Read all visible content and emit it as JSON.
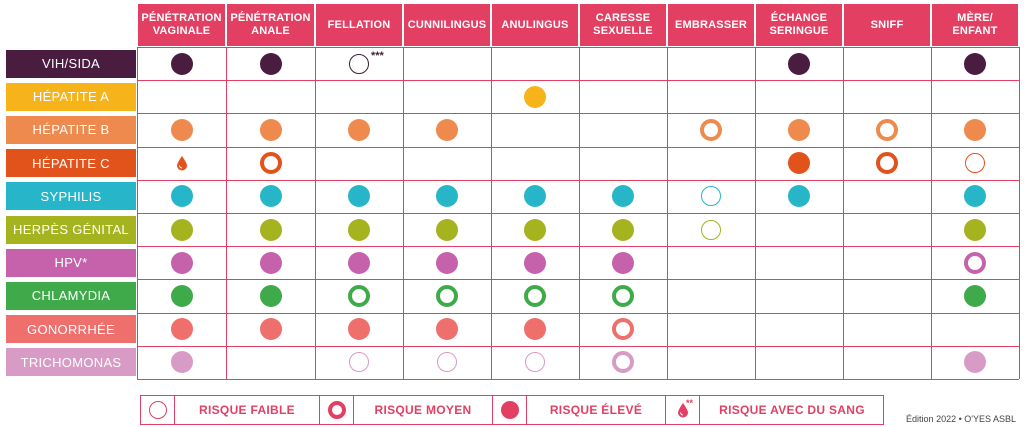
{
  "columns": [
    "PÉNÉTRATION VAGINALE",
    "PÉNÉTRATION ANALE",
    "FELLATION",
    "CUNNILINGUS",
    "ANULINGUS",
    "CARESSE SEXUELLE",
    "EMBRASSER",
    "ÉCHANGE SERINGUE",
    "SNIFF",
    "MÈRE/ ENFANT"
  ],
  "rows": [
    {
      "label": "VIH/SIDA",
      "color": "#4a1c40",
      "cells": [
        "eleve",
        "eleve",
        "faible",
        "",
        "",
        "",
        "",
        "eleve",
        "",
        "eleve"
      ]
    },
    {
      "label": "HÉPATITE A",
      "color": "#f7b41a",
      "cells": [
        "",
        "",
        "",
        "",
        "eleve",
        "",
        "",
        "",
        "",
        ""
      ]
    },
    {
      "label": "HÉPATITE B",
      "color": "#ef8a4e",
      "cells": [
        "eleve",
        "eleve",
        "eleve",
        "eleve",
        "",
        "",
        "moyen",
        "eleve",
        "moyen",
        "eleve"
      ]
    },
    {
      "label": "HÉPATITE C",
      "color": "#e2531c",
      "cells": [
        "sang",
        "moyen",
        "",
        "",
        "",
        "",
        "",
        "eleve",
        "moyen",
        "faible"
      ]
    },
    {
      "label": "SYPHILIS",
      "color": "#27b6c9",
      "cells": [
        "eleve",
        "eleve",
        "eleve",
        "eleve",
        "eleve",
        "eleve",
        "faible",
        "eleve",
        "",
        "eleve"
      ]
    },
    {
      "label": "HERPÈS GÉNITAL",
      "color": "#a4b31e",
      "cells": [
        "eleve",
        "eleve",
        "eleve",
        "eleve",
        "eleve",
        "eleve",
        "faible",
        "",
        "",
        "eleve"
      ]
    },
    {
      "label": "HPV*",
      "color": "#c661ac",
      "cells": [
        "eleve",
        "eleve",
        "eleve",
        "eleve",
        "eleve",
        "eleve",
        "",
        "",
        "",
        "moyen"
      ]
    },
    {
      "label": "CHLAMYDIA",
      "color": "#3faa4a",
      "cells": [
        "eleve",
        "eleve",
        "moyen",
        "moyen",
        "moyen",
        "moyen",
        "",
        "",
        "",
        "eleve"
      ]
    },
    {
      "label": "GONORRHÉE",
      "color": "#ee6f6c",
      "cells": [
        "eleve",
        "eleve",
        "eleve",
        "eleve",
        "eleve",
        "moyen",
        "",
        "",
        "",
        ""
      ]
    },
    {
      "label": "TRICHOMONAS",
      "color": "#d89bc6",
      "cells": [
        "eleve",
        "",
        "faible",
        "faible",
        "faible",
        "moyen",
        "",
        "",
        "",
        "eleve"
      ]
    }
  ],
  "note_mark": "***",
  "legend": [
    {
      "type": "faible",
      "label": "RISQUE FAIBLE"
    },
    {
      "type": "moyen",
      "label": "RISQUE MOYEN"
    },
    {
      "type": "eleve",
      "label": "RISQUE ÉLEVÉ"
    },
    {
      "type": "sang",
      "mark": "**",
      "label": "RISQUE AVEC DU SANG"
    }
  ],
  "accent_color": "#e23f63",
  "edition": "Édition 2022 • O'YES ASBL"
}
